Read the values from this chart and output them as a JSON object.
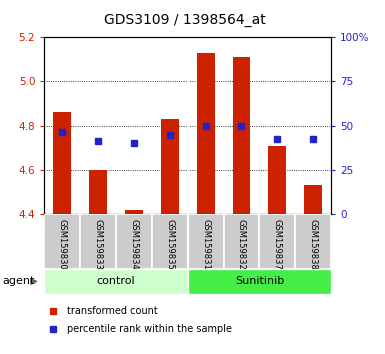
{
  "title": "GDS3109 / 1398564_at",
  "samples": [
    "GSM159830",
    "GSM159833",
    "GSM159834",
    "GSM159835",
    "GSM159831",
    "GSM159832",
    "GSM159837",
    "GSM159838"
  ],
  "bar_tops": [
    4.86,
    4.6,
    4.42,
    4.83,
    5.13,
    5.11,
    4.71,
    4.53
  ],
  "bar_bottom": 4.4,
  "blue_values": [
    4.77,
    4.73,
    4.72,
    4.76,
    4.8,
    4.8,
    4.74,
    4.74
  ],
  "ylim_left": [
    4.4,
    5.2
  ],
  "ylim_right": [
    0,
    100
  ],
  "yticks_left": [
    4.4,
    4.6,
    4.8,
    5.0,
    5.2
  ],
  "yticks_right": [
    0,
    25,
    50,
    75,
    100
  ],
  "ytick_labels_right": [
    "0",
    "25",
    "50",
    "75",
    "100%"
  ],
  "bar_color": "#cc2200",
  "blue_color": "#2222cc",
  "control_color": "#ccffcc",
  "sunitinib_color": "#44ee44",
  "bg_color": "#cccccc",
  "plot_bg": "#ffffff",
  "left_tick_color": "#cc2200",
  "right_tick_color": "#2222cc",
  "legend_red": "transformed count",
  "legend_blue": "percentile rank within the sample",
  "bar_width": 0.5,
  "n_control": 4,
  "n_total": 8
}
